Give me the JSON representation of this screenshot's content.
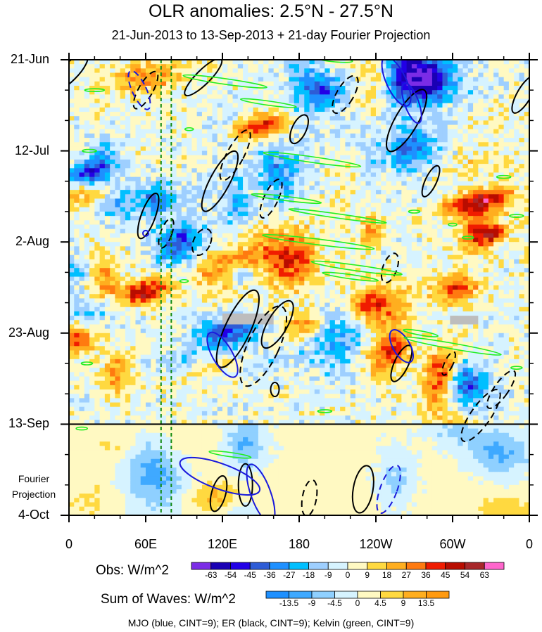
{
  "title": "OLR anomalies: 2.5°N - 27.5°N",
  "subtitle": "21-Jun-2013 to 13-Sep-2013 + 21-day Fourier Projection",
  "chart_data": {
    "type": "heatmap",
    "x_axis": {
      "ticks": [
        "0",
        "60E",
        "120E",
        "180",
        "120W",
        "60W",
        "0"
      ],
      "values": [
        0,
        60,
        120,
        180,
        240,
        300,
        360
      ],
      "range": [
        0,
        360
      ]
    },
    "y_axis": {
      "ticks": [
        "21-Jun",
        "12-Jul",
        "2-Aug",
        "23-Aug",
        "13-Sep",
        "4-Oct"
      ],
      "values": [
        0,
        21,
        42,
        63,
        84,
        105
      ],
      "range": [
        0,
        105
      ],
      "direction": "time increasing downward"
    },
    "fourier_projection": {
      "label_line1": "Fourier",
      "label_line2": "Projection",
      "start_day": 84,
      "end_day": 105
    },
    "obs_colorbar": {
      "title": "Obs: W/m^2",
      "levels": [
        -63,
        -54,
        -45,
        -36,
        -27,
        -18,
        -9,
        0,
        9,
        18,
        27,
        36,
        45,
        54,
        63
      ],
      "colors": [
        "#7b2ce6",
        "#1a00b4",
        "#2200e6",
        "#2e5cd6",
        "#1e90ff",
        "#00bfff",
        "#9ecfff",
        "#d6f3ff",
        "#fff9c2",
        "#ffd940",
        "#ffae1f",
        "#ff7a10",
        "#f01c00",
        "#b80d00",
        "#a8272a",
        "#ff66cc"
      ]
    },
    "waves_colorbar": {
      "title": "Sum of Waves: W/m^2",
      "levels": [
        -13.5,
        -9,
        -4.5,
        0,
        4.5,
        9,
        13.5
      ],
      "colors": [
        "#1e90ff",
        "#3fa9ff",
        "#8fd0ff",
        "#d6f3ff",
        "#fff9c2",
        "#ffd940",
        "#ffae1f",
        "#ff9a10"
      ]
    },
    "contours": {
      "MJO": {
        "color": "#1a1adc",
        "cint": 9
      },
      "ER": {
        "color": "#000000",
        "cint": 9
      },
      "Kelvin": {
        "color": "#22ee22",
        "cint": 9
      }
    },
    "reference_lines": {
      "vertical_dashed_lon": [
        72,
        80
      ],
      "horizontal_solid_day": 84
    }
  },
  "legend_note": "MJO (blue, CINT=9); ER (black, CINT=9); Kelvin (green, CINT=9)"
}
